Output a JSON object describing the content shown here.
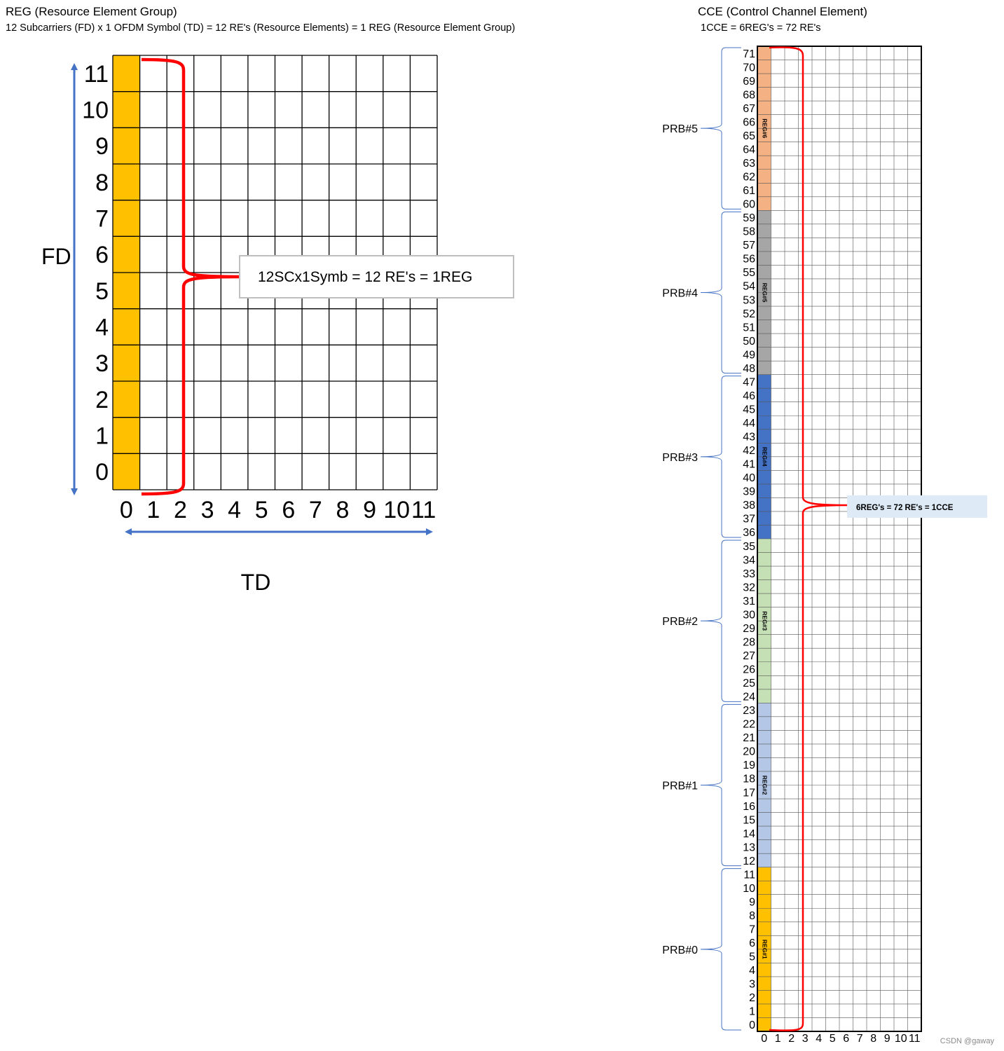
{
  "left": {
    "title": "REG (Resource Element Group)",
    "subtitle": "12 Subcarriers (FD) x 1 OFDM Symbol (TD) = 12 RE's (Resource Elements)  =  1 REG (Resource Element Group)",
    "grid": {
      "rows": 12,
      "cols": 12,
      "highlight_col": 0,
      "highlight_color": "#FFC000"
    },
    "row_labels": [
      "0",
      "1",
      "2",
      "3",
      "4",
      "5",
      "6",
      "7",
      "8",
      "9",
      "10",
      "11"
    ],
    "col_labels": [
      "0",
      "1",
      "2",
      "3",
      "4",
      "5",
      "6",
      "7",
      "8",
      "9",
      "10",
      "11"
    ],
    "fd_label": "FD",
    "td_label": "TD",
    "callout": "12SCx1Symb = 12 RE's = 1REG",
    "arrow_color": "#4472C4",
    "brace_color": "#FF0000"
  },
  "right": {
    "title": "CCE (Control Channel Element)",
    "subtitle": "1CCE = 6REG's = 72 RE's",
    "grid": {
      "rows": 72,
      "cols": 12
    },
    "col_labels": [
      "0",
      "1",
      "2",
      "3",
      "4",
      "5",
      "6",
      "7",
      "8",
      "9",
      "10",
      "11"
    ],
    "prbs": [
      {
        "label": "PRB#0",
        "reg": "REG#1",
        "color": "#FFC000",
        "start": 0
      },
      {
        "label": "PRB#1",
        "reg": "REG#2",
        "color": "#B4C7E7",
        "start": 12
      },
      {
        "label": "PRB#2",
        "reg": "REG#3",
        "color": "#C5E0B4",
        "start": 24
      },
      {
        "label": "PRB#3",
        "reg": "REG#4",
        "color": "#4472C4",
        "start": 36
      },
      {
        "label": "PRB#4",
        "reg": "REG#5",
        "color": "#A6A6A6",
        "start": 48
      },
      {
        "label": "PRB#5",
        "reg": "REG#6",
        "color": "#F4B183",
        "start": 60
      }
    ],
    "callout": "6REG's = 72 RE's = 1CCE",
    "callout_bg": "#DEEBF7"
  },
  "watermark": "CSDN @gaway"
}
